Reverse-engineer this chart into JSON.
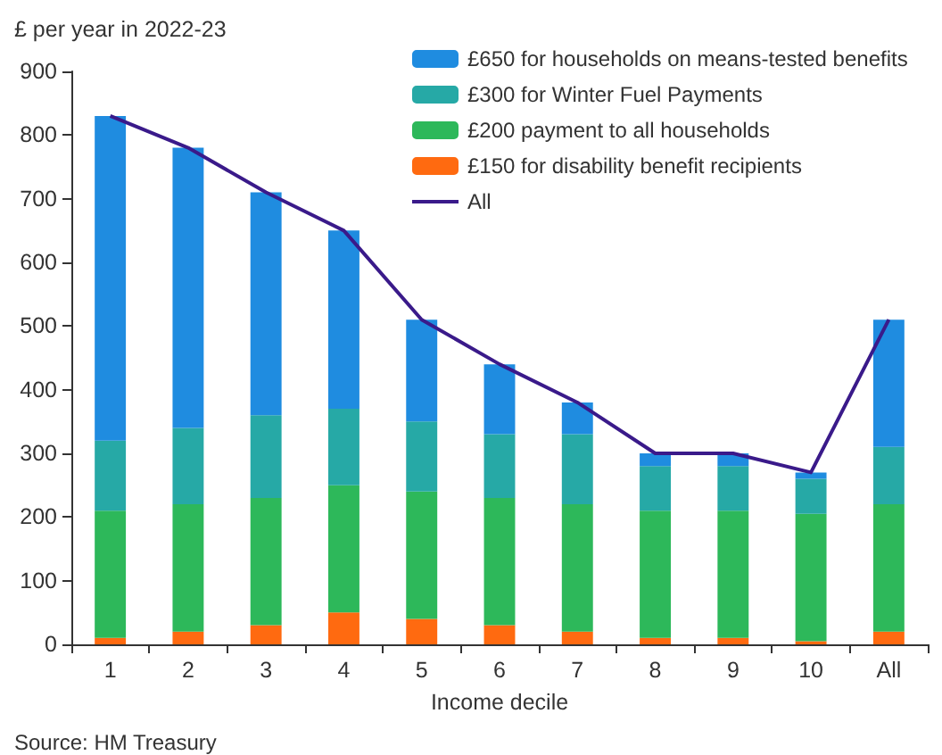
{
  "chart_data": {
    "type": "bar",
    "stacked": true,
    "ylabel": "£ per year in 2022-23",
    "xlabel": "Income decile",
    "categories": [
      "1",
      "2",
      "3",
      "4",
      "5",
      "6",
      "7",
      "8",
      "9",
      "10",
      "All"
    ],
    "series": [
      {
        "name": "£150 for disability benefit recipients",
        "color": "#ff6a10",
        "values": [
          10,
          20,
          30,
          50,
          40,
          30,
          20,
          10,
          10,
          5,
          20
        ]
      },
      {
        "name": "£200 payment to all households",
        "color": "#2db85a",
        "values": [
          200,
          200,
          200,
          200,
          200,
          200,
          200,
          200,
          200,
          200,
          200
        ]
      },
      {
        "name": "£300 for Winter Fuel Payments",
        "color": "#26a9a6",
        "values": [
          110,
          120,
          130,
          120,
          110,
          100,
          110,
          70,
          70,
          55,
          90
        ]
      },
      {
        "name": "£650 for households on means-tested benefits",
        "color": "#1f8ce0",
        "values": [
          510,
          440,
          350,
          280,
          160,
          110,
          50,
          20,
          20,
          10,
          200
        ]
      },
      {
        "name": "All",
        "type": "line",
        "color": "#3a1a8a",
        "marker": "none",
        "line_style": "solid",
        "values": [
          830,
          780,
          710,
          650,
          510,
          440,
          380,
          300,
          300,
          270,
          510
        ]
      }
    ],
    "ylim": [
      0,
      900
    ],
    "yticks": [
      0,
      100,
      200,
      300,
      400,
      500,
      600,
      700,
      800,
      900
    ],
    "grid": false,
    "legend": "top right",
    "annotations": [
      "Source: HM Treasury"
    ]
  }
}
